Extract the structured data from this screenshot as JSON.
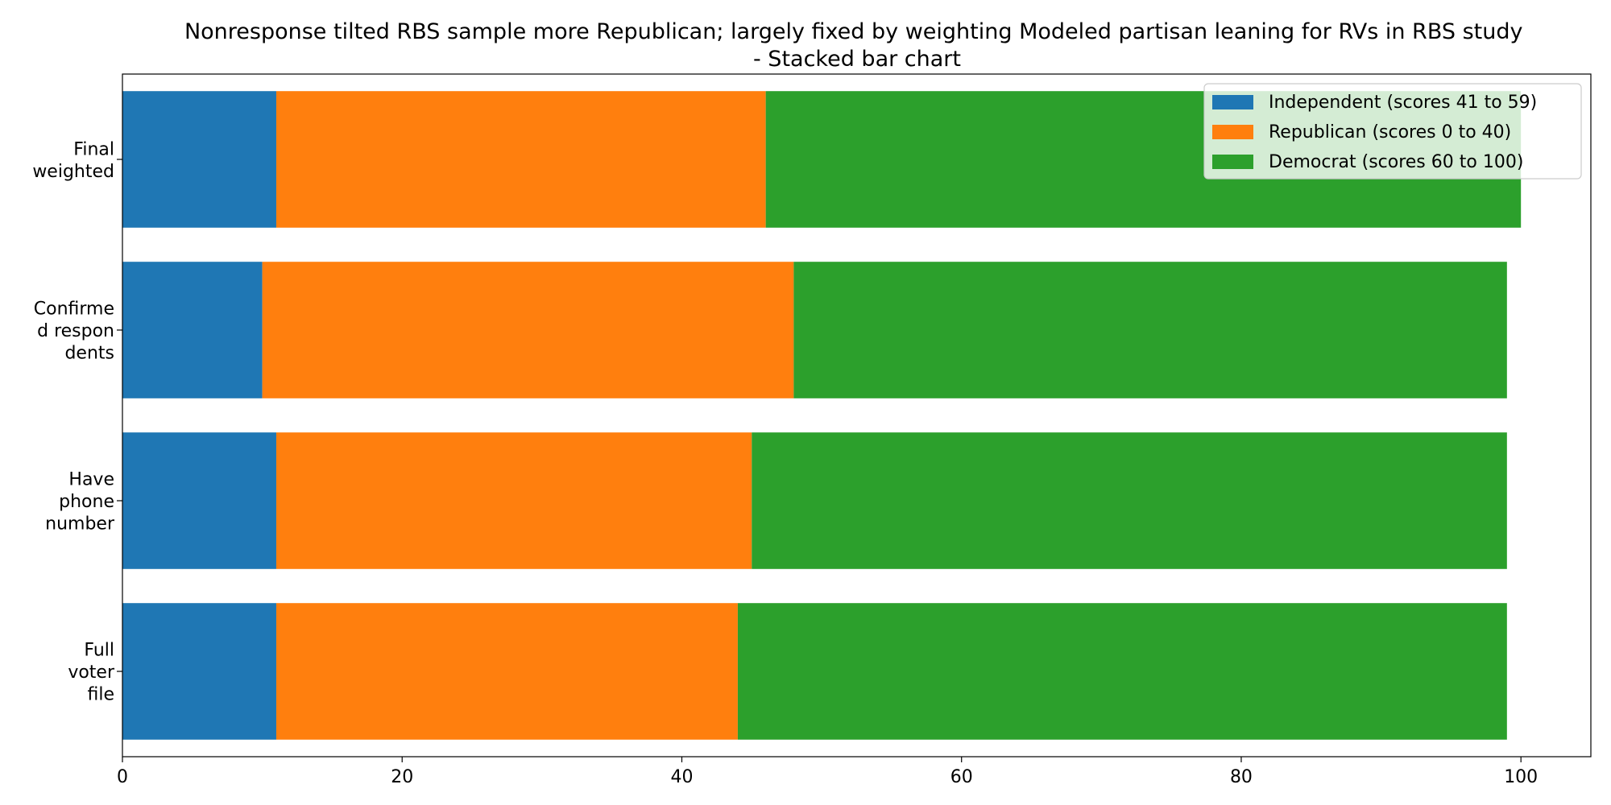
{
  "chart_data": {
    "type": "bar",
    "orientation": "horizontal",
    "stacked": true,
    "title": "Nonresponse tilted RBS sample more Republican; largely fixed by weighting Modeled partisan leaning for RVs in RBS study\n- Stacked bar chart",
    "xlabel": "",
    "ylabel": "",
    "xlim": [
      0,
      105
    ],
    "x_ticks": [
      0,
      20,
      40,
      60,
      80,
      100
    ],
    "categories": [
      "Full voter file",
      "Have phone number",
      "Confirmed respondents",
      "Final weighted"
    ],
    "category_tick_lines": [
      [
        "Full",
        "voter",
        "file"
      ],
      [
        "Have",
        "phone",
        "number"
      ],
      [
        "Confirme",
        "d respon",
        "dents"
      ],
      [
        "Final",
        "weighted"
      ]
    ],
    "series": [
      {
        "name": "Independent (scores 41 to 59)",
        "color": "#1f77b4",
        "values": [
          11,
          11,
          10,
          11
        ]
      },
      {
        "name": "Republican (scores 0 to 40)",
        "color": "#ff7f0e",
        "values": [
          33,
          34,
          38,
          35
        ]
      },
      {
        "name": "Democrat (scores 60 to 100)",
        "color": "#2ca02c",
        "values": [
          55,
          54,
          51,
          54
        ]
      }
    ],
    "grid": false,
    "legend_position": "top-right"
  }
}
